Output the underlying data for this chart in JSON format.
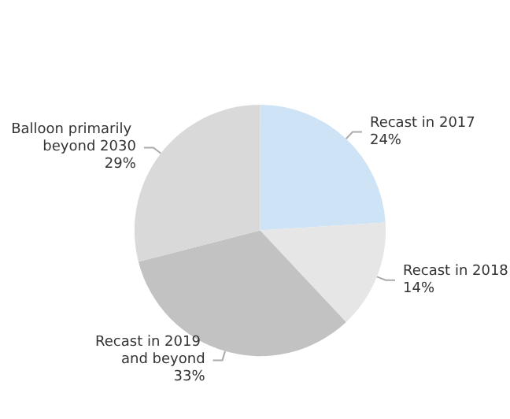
{
  "chart_data": {
    "type": "pie",
    "categories": [
      "Recast in 2017",
      "Recast in 2018",
      "Recast in 2019 and beyond",
      "Balloon primarily beyond 2030"
    ],
    "values": [
      24,
      14,
      33,
      29
    ],
    "colors": [
      "#cfe3f7",
      "#e6e6e6",
      "#c2c2c2",
      "#d9d9d9"
    ],
    "value_labels": [
      "24%",
      "14%",
      "33%",
      "29%"
    ],
    "legend": false
  }
}
